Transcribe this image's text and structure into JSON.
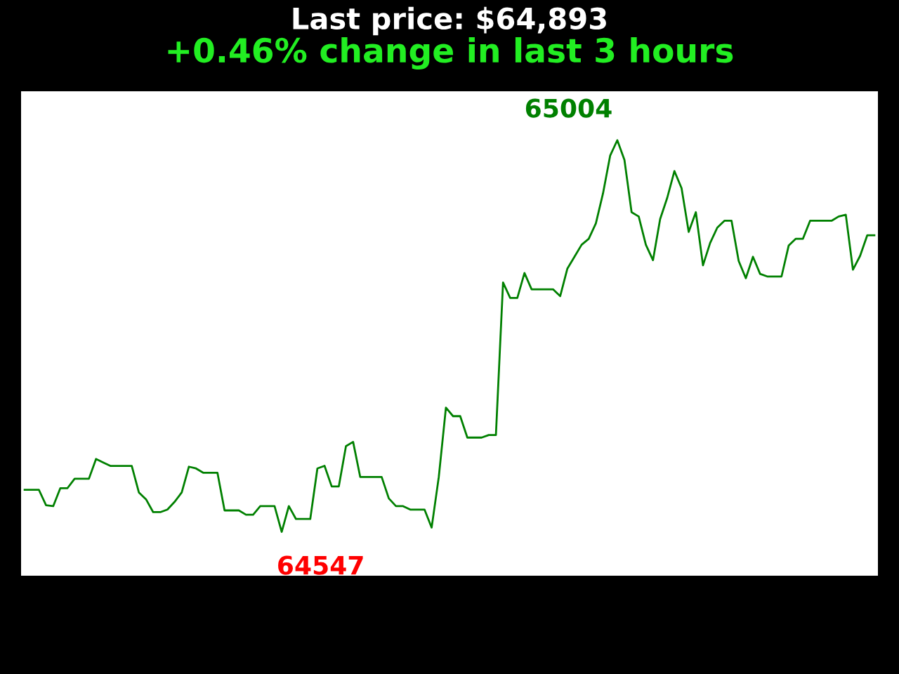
{
  "chart_data": {
    "type": "line",
    "title": "Last price: $64,893",
    "subtitle": "+0.46% change in last 3 hours",
    "categories": [
      null,
      null,
      null,
      null,
      null,
      null,
      null,
      null,
      null,
      null,
      null,
      null,
      null,
      null,
      null,
      null,
      null,
      null,
      null,
      null,
      null,
      null,
      null,
      null,
      null,
      null,
      null,
      null,
      null,
      null,
      null,
      null,
      null,
      null,
      null,
      null,
      null,
      null,
      null,
      null,
      null,
      null,
      null,
      null,
      null,
      null,
      null,
      null,
      null,
      null,
      null,
      null,
      null,
      null,
      null,
      null,
      null,
      null,
      null,
      null,
      null,
      null,
      null,
      null,
      null,
      null,
      null,
      null,
      null,
      null,
      null,
      null,
      null,
      null,
      null,
      null,
      null,
      null,
      null,
      null,
      null,
      null,
      null,
      null,
      null,
      null,
      null,
      null,
      null,
      null,
      null,
      null,
      null,
      null,
      null,
      null,
      null,
      null,
      null,
      null,
      null,
      null,
      null,
      null,
      null,
      null,
      null,
      null,
      null,
      null,
      null,
      null,
      null,
      null,
      null,
      null,
      null,
      null,
      null,
      null
    ],
    "series": [
      {
        "color": "#008000",
        "values": [
          64596,
          64596,
          64596,
          64578,
          64577,
          64598,
          64598,
          64609,
          64609,
          64609,
          64632,
          64628,
          64624,
          64624,
          64624,
          64624,
          64593,
          64585,
          64570,
          64570,
          64573,
          64582,
          64593,
          64623,
          64621,
          64616,
          64616,
          64616,
          64572,
          64572,
          64572,
          64567,
          64567,
          64577,
          64577,
          64577,
          64547,
          64577,
          64562,
          64562,
          64562,
          64621,
          64624,
          64600,
          64600,
          64647,
          64652,
          64611,
          64611,
          64611,
          64611,
          64586,
          64577,
          64577,
          64573,
          64573,
          64573,
          64552,
          64611,
          64692,
          64682,
          64682,
          64657,
          64657,
          64657,
          64660,
          64660,
          64838,
          64820,
          64820,
          64849,
          64830,
          64830,
          64830,
          64830,
          64822,
          64854,
          64868,
          64882,
          64889,
          64907,
          64942,
          64986,
          65004,
          64981,
          64920,
          64915,
          64882,
          64864,
          64912,
          64937,
          64968,
          64948,
          64897,
          64920,
          64858,
          64884,
          64902,
          64910,
          64910,
          64863,
          64843,
          64868,
          64848,
          64845,
          64845,
          64845,
          64881,
          64889,
          64889,
          64910,
          64910,
          64910,
          64910,
          64915,
          64917,
          64853,
          64869,
          64893,
          64893
        ],
        "value_labels": [
          null,
          null,
          null,
          null,
          null,
          null,
          null,
          null,
          null,
          null,
          null,
          null,
          null,
          null,
          null,
          null,
          null,
          null,
          null,
          null,
          null,
          null,
          null,
          null,
          null,
          null,
          null,
          null,
          null,
          null,
          null,
          null,
          null,
          null,
          null,
          null,
          "64547",
          null,
          null,
          null,
          null,
          null,
          null,
          null,
          null,
          null,
          null,
          null,
          null,
          null,
          null,
          null,
          null,
          null,
          null,
          null,
          null,
          null,
          null,
          null,
          null,
          null,
          null,
          null,
          null,
          null,
          null,
          null,
          null,
          null,
          null,
          null,
          null,
          null,
          null,
          null,
          null,
          null,
          null,
          null,
          null,
          null,
          null,
          "65004",
          null,
          null,
          null,
          null,
          null,
          null,
          null,
          null,
          null,
          null,
          null,
          null,
          null,
          null,
          null,
          null,
          null,
          null,
          null,
          null,
          null,
          null,
          null,
          null,
          null,
          null,
          null,
          null,
          null,
          null,
          null,
          null,
          null,
          null,
          null,
          null
        ]
      }
    ],
    "tick_labels": false,
    "grid": false,
    "legend": false,
    "marker": "none",
    "line_style": "solid"
  }
}
